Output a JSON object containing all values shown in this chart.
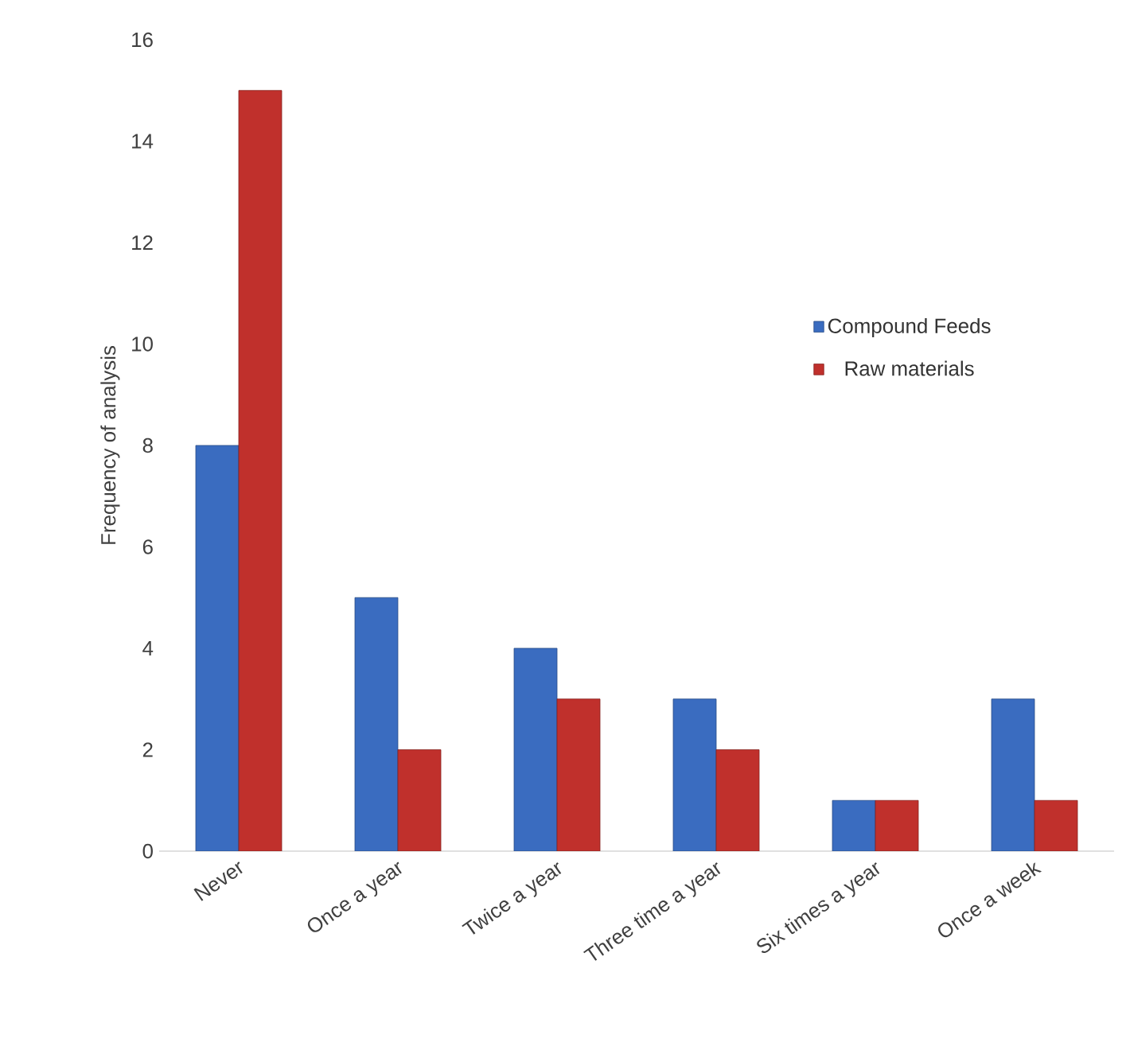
{
  "chart_data": {
    "type": "bar",
    "ylabel": "Frequency of analysis",
    "categories": [
      "Never",
      "Once a year",
      "Twice a year",
      "Three time a year",
      "Six times a year",
      "Once a week"
    ],
    "series": [
      {
        "name": "Compound Feeds",
        "color": "#3a6cc0",
        "values": [
          8,
          5,
          4,
          3,
          1,
          3
        ]
      },
      {
        "name": "Raw materials",
        "color": "#c0302c",
        "values": [
          15,
          2,
          3,
          2,
          1,
          1
        ]
      }
    ],
    "ylim": [
      0,
      16
    ],
    "yticks": [
      0,
      2,
      4,
      6,
      8,
      10,
      12,
      14,
      16
    ],
    "grid": false,
    "legend": "right"
  }
}
